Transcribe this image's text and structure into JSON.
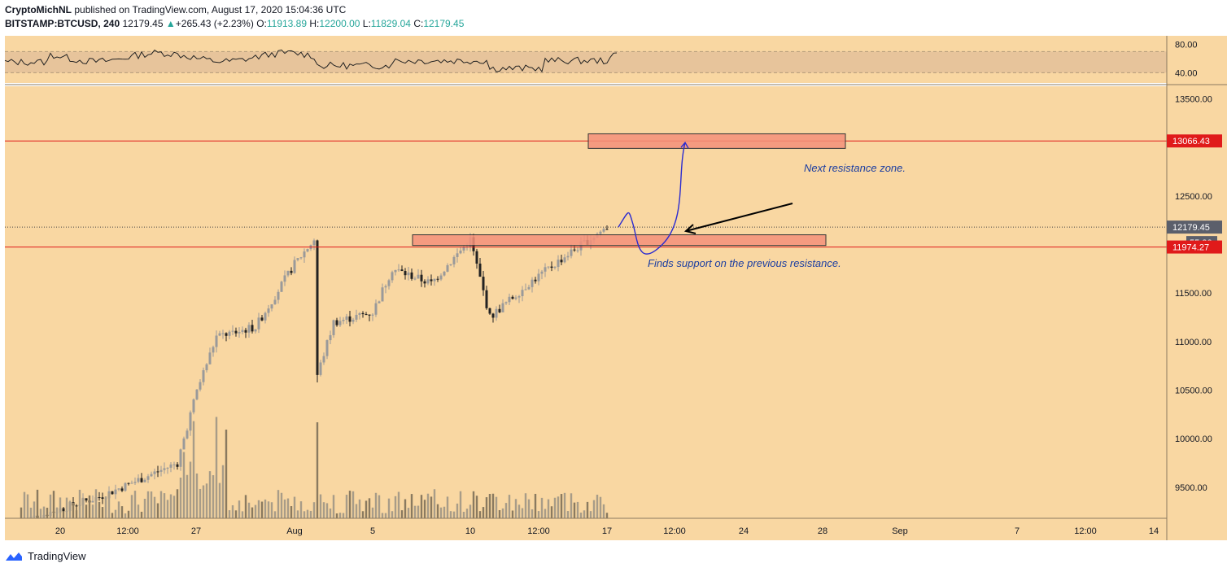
{
  "header": {
    "author": "CryptoMichNL",
    "published_text": "published on TradingView.com, August 17, 2020 15:04:36 UTC",
    "symbol": "BITSTAMP:BTCUSD, 240",
    "last": "12179.45",
    "change": "+265.43 (+2.23%)",
    "o_label": "O:",
    "o_value": "11913.89",
    "h_label": "H:",
    "h_value": "12200.00",
    "l_label": "L:",
    "l_value": "11829.04",
    "c_label": "C:",
    "c_value": "12179.45"
  },
  "footer": {
    "brand": "TradingView"
  },
  "colors": {
    "background": "#f9d7a2",
    "candle_up": "#9a9a9a",
    "candle_down": "#222222",
    "volume_bar": "#8a7a60",
    "resistance_line": "#e01a1a",
    "zone_fill": "#f5907a",
    "projection": "#2b2bd0",
    "annotation_text": "#1c3ea1"
  },
  "chart_data": {
    "type": "candlestick",
    "symbol": "BITSTAMP:BTCUSD",
    "timeframe": "240",
    "price_axis": {
      "ticks": [
        9500,
        10000,
        10500,
        11000,
        11500,
        12500,
        13500
      ],
      "tick_labels": [
        "9500.00",
        "10000.00",
        "10500.00",
        "11000.00",
        "11500.00",
        "12500.00",
        "13500.00"
      ],
      "range": [
        9180,
        13630
      ]
    },
    "rsi_axis": {
      "ticks": [
        80,
        40
      ],
      "tick_labels": [
        "80.00",
        "40.00"
      ],
      "band": [
        40,
        70
      ]
    },
    "time_axis": {
      "labels": [
        "20",
        "12:00",
        "27",
        "Aug",
        "5",
        "10",
        "12:00",
        "17",
        "12:00",
        "24",
        "28",
        "Sep",
        "7",
        "12:00",
        "14"
      ]
    },
    "price_labels": [
      {
        "text": "13066.43",
        "value": 13066.43,
        "color": "#e01a1a"
      },
      {
        "text": "12179.45",
        "value": 12179.45,
        "color": "#5b5f6b"
      },
      {
        "text": "55:26",
        "value": 12020,
        "color": "#5b5f6b"
      },
      {
        "text": "11974.27",
        "value": 11974.27,
        "color": "#e01a1a"
      }
    ],
    "horizontal_lines": [
      13066.43,
      11974.27
    ],
    "current_price": 12179.45,
    "zones": [
      {
        "label": "Next resistance zone.",
        "top": 13140,
        "bottom": 12990
      },
      {
        "label": "Finds support on the previous resistance.",
        "top": 12100,
        "bottom": 11990
      }
    ],
    "annotations": [
      "Next resistance zone.",
      "Finds support on the previous resistance."
    ],
    "price_path_key_points": [
      {
        "date": "Jul 18",
        "price": 9150
      },
      {
        "date": "Jul 22",
        "price": 9400
      },
      {
        "date": "Jul 26",
        "price": 9750
      },
      {
        "date": "Jul 27",
        "price": 10500
      },
      {
        "date": "Jul 28",
        "price": 11050
      },
      {
        "date": "Jul 30",
        "price": 11150
      },
      {
        "date": "Aug 1",
        "price": 11800
      },
      {
        "date": "Aug 2",
        "price": 12050
      },
      {
        "date": "Aug 2",
        "price": 10600
      },
      {
        "date": "Aug 3",
        "price": 11200
      },
      {
        "date": "Aug 5",
        "price": 11300
      },
      {
        "date": "Aug 6",
        "price": 11750
      },
      {
        "date": "Aug 8",
        "price": 11600
      },
      {
        "date": "Aug 10",
        "price": 12050
      },
      {
        "date": "Aug 11",
        "price": 11250
      },
      {
        "date": "Aug 13",
        "price": 11600
      },
      {
        "date": "Aug 15",
        "price": 11900
      },
      {
        "date": "Aug 17",
        "price": 12179.45
      }
    ],
    "projected_path": [
      {
        "date": "Aug 18",
        "price": 12250
      },
      {
        "date": "Aug 19",
        "price": 12000
      },
      {
        "date": "Aug 21",
        "price": 13050
      }
    ]
  }
}
